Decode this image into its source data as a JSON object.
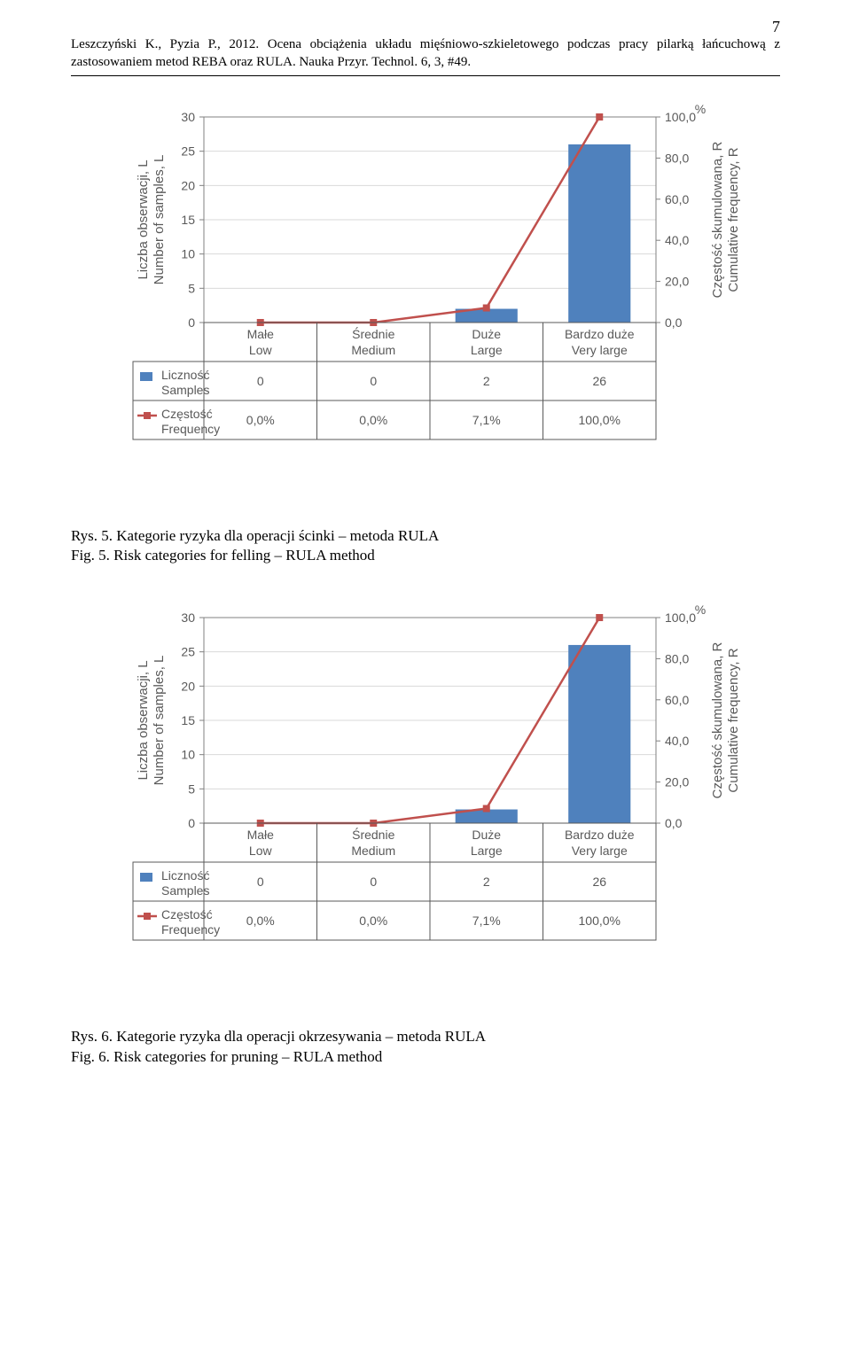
{
  "page_number": "7",
  "citation": "Leszczyński K., Pyzia P., 2012. Ocena obciążenia układu mięśniowo-szkieletowego podczas pracy pilarką łańcuchową z zastosowaniem metod REBA oraz RULA. Nauka Przyr. Technol. 6, 3, #49.",
  "chart5": {
    "type": "bar+line",
    "percent_label": "%",
    "y_left_title_pl": "Liczba obserwacji, L",
    "y_left_title_en": "Number of samples, L",
    "y_right_title_pl": "Częstość skumulowana, R",
    "y_right_title_en": "Cumulative frequency, R",
    "y_left_ticks": [
      "0",
      "5",
      "10",
      "15",
      "20",
      "25",
      "30"
    ],
    "y_left_min": 0,
    "y_left_max": 30,
    "y_right_ticks": [
      "0,0",
      "20,0",
      "40,0",
      "60,0",
      "80,0",
      "100,0"
    ],
    "y_right_min": 0,
    "y_right_max": 100,
    "categories": [
      {
        "l1": "Małe",
        "l2": "Low"
      },
      {
        "l1": "Średnie",
        "l2": "Medium"
      },
      {
        "l1": "Duże",
        "l2": "Large"
      },
      {
        "l1": "Bardzo duże",
        "l2": "Very large"
      }
    ],
    "bar_values": [
      0,
      0,
      2,
      26
    ],
    "line_values": [
      0,
      0,
      7.1,
      100
    ],
    "bar_color": "#4f81bd",
    "line_color": "#c0504d",
    "marker_color": "#c0504d",
    "grid_color": "#d9d9d9",
    "legend_bar_color": "#4f81bd",
    "legend_line_color": "#c0504d",
    "table_rows": [
      {
        "label_pl": "Liczność",
        "label_en": "Samples",
        "cells": [
          "0",
          "0",
          "2",
          "26"
        ]
      },
      {
        "label_pl": "Częstość",
        "label_en": "Frequency",
        "cells": [
          "0,0%",
          "0,0%",
          "7,1%",
          "100,0%"
        ]
      }
    ],
    "caption_pl": "Rys. 5. Kategorie ryzyka dla operacji ścinki – metoda RULA",
    "caption_en": "Fig. 5. Risk categories for felling – RULA method"
  },
  "chart6": {
    "type": "bar+line",
    "percent_label": "%",
    "y_left_title_pl": "Liczba obserwacji, L",
    "y_left_title_en": "Number of samples, L",
    "y_right_title_pl": "Częstość skumulowana, R",
    "y_right_title_en": "Cumulative frequency, R",
    "y_left_ticks": [
      "0",
      "5",
      "10",
      "15",
      "20",
      "25",
      "30"
    ],
    "y_left_min": 0,
    "y_left_max": 30,
    "y_right_ticks": [
      "0,0",
      "20,0",
      "40,0",
      "60,0",
      "80,0",
      "100,0"
    ],
    "y_right_min": 0,
    "y_right_max": 100,
    "categories": [
      {
        "l1": "Małe",
        "l2": "Low"
      },
      {
        "l1": "Średnie",
        "l2": "Medium"
      },
      {
        "l1": "Duże",
        "l2": "Large"
      },
      {
        "l1": "Bardzo duże",
        "l2": "Very large"
      }
    ],
    "bar_values": [
      0,
      0,
      2,
      26
    ],
    "line_values": [
      0,
      0,
      7.1,
      100
    ],
    "bar_color": "#4f81bd",
    "line_color": "#c0504d",
    "marker_color": "#c0504d",
    "grid_color": "#d9d9d9",
    "legend_bar_color": "#4f81bd",
    "legend_line_color": "#c0504d",
    "table_rows": [
      {
        "label_pl": "Liczność",
        "label_en": "Samples",
        "cells": [
          "0",
          "0",
          "2",
          "26"
        ]
      },
      {
        "label_pl": "Częstość",
        "label_en": "Frequency",
        "cells": [
          "0,0%",
          "0,0%",
          "7,1%",
          "100,0%"
        ]
      }
    ],
    "caption_pl": "Rys. 6. Kategorie ryzyka dla operacji okrzesywania – metoda RULA",
    "caption_en": "Fig. 6. Risk categories for pruning – RULA method"
  }
}
